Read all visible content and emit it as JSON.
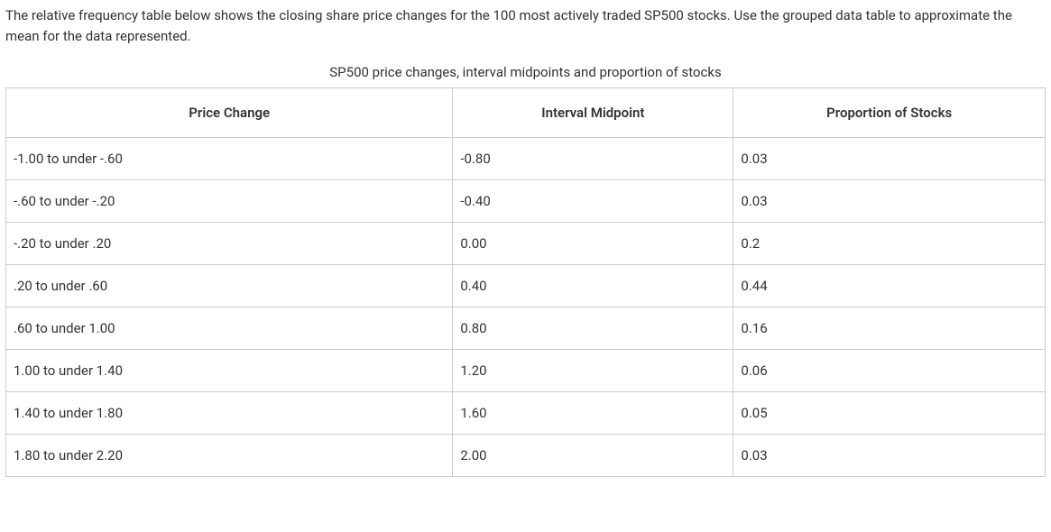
{
  "intro": "The relative frequency table below shows the closing share price changes for the 100 most actively traded SP500 stocks. Use the grouped data table to approximate the mean for the data represented.",
  "table": {
    "caption": "SP500 price changes, interval midpoints and proportion of stocks",
    "columns": [
      "Price Change",
      "Interval Midpoint",
      "Proportion of Stocks"
    ],
    "rows": [
      [
        "-1.00 to under -.60",
        "-0.80",
        "0.03"
      ],
      [
        "-.60 to under -.20",
        "-0.40",
        "0.03"
      ],
      [
        "-.20 to under .20",
        "0.00",
        "0.2"
      ],
      [
        ".20 to under .60",
        "0.40",
        "0.44"
      ],
      [
        ".60 to under 1.00",
        "0.80",
        "0.16"
      ],
      [
        "1.00 to under 1.40",
        "1.20",
        "0.06"
      ],
      [
        "1.40 to under 1.80",
        "1.60",
        "0.05"
      ],
      [
        "1.80 to under 2.20",
        "2.00",
        "0.03"
      ]
    ],
    "border_color": "#cccccc",
    "text_color": "#333333",
    "background_color": "#ffffff",
    "header_fontweight": 600,
    "cell_fontsize": 15
  }
}
